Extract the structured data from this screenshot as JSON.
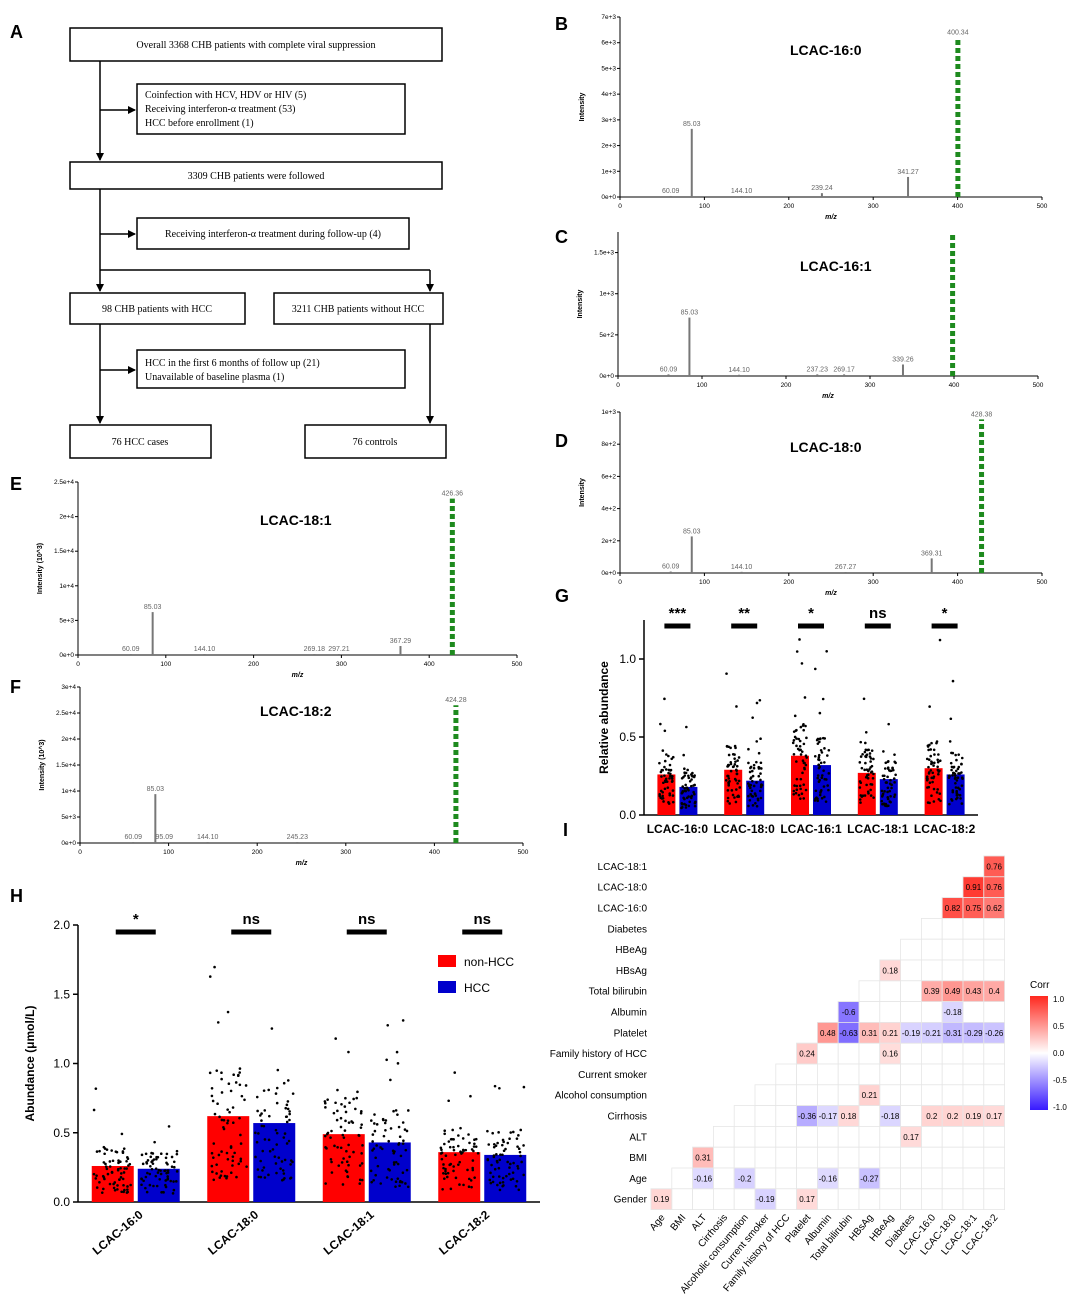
{
  "panel_letters": {
    "a": "A",
    "b": "B",
    "c": "C",
    "d": "D",
    "e": "E",
    "f": "F",
    "g": "G",
    "h": "H",
    "i": "I"
  },
  "flowchart": {
    "box1": "Overall 3368 CHB patients with complete viral suppression",
    "excl1": [
      "Coinfection with HCV, HDV or HIV (5)",
      "Receiving interferon-α treatment (53)",
      "HCC before enrollment (1)"
    ],
    "box2": "3309 CHB patients were followed",
    "excl2": "Receiving interferon-α treatment during follow-up (4)",
    "box3a": "98 CHB patients with HCC",
    "box3b": "3211 CHB patients without HCC",
    "excl3": [
      "HCC in the first 6 months of follow up (21)",
      "Unavailable of baseline plasma (1)"
    ],
    "box4a": "76 HCC cases",
    "box4b": "76 controls"
  },
  "chart_data": [
    {
      "id": "B",
      "type": "bar",
      "title": "LCAC-16:0",
      "xlabel": "m/z",
      "ylabel": "Intensity",
      "xlim": [
        0,
        500
      ],
      "xticks": [
        "0",
        "100",
        "200",
        "300",
        "400",
        "500"
      ],
      "ylim": [
        0,
        7000
      ],
      "yticks": [
        "0e+0",
        "1e+3",
        "2e+3",
        "3e+3",
        "4e+3",
        "5e+3",
        "6e+3",
        "7e+3"
      ],
      "peaks": [
        {
          "x": 60.09,
          "y": 40,
          "label": "60.09"
        },
        {
          "x": 85.03,
          "y": 2650,
          "label": "85.03"
        },
        {
          "x": 144.1,
          "y": 25,
          "label": "144.10"
        },
        {
          "x": 239.24,
          "y": 150,
          "label": "239.24"
        },
        {
          "x": 341.27,
          "y": 780,
          "label": "341.27"
        },
        {
          "x": 400.34,
          "y": 6200,
          "label": "400.34",
          "highlight": true
        }
      ]
    },
    {
      "id": "C",
      "type": "bar",
      "title": "LCAC-16:1",
      "xlabel": "m/z",
      "ylabel": "Intensity",
      "xlim": [
        0,
        500
      ],
      "xticks": [
        "0",
        "100",
        "200",
        "300",
        "400",
        "500"
      ],
      "ylim": [
        0,
        1750
      ],
      "yticks": [
        "0e+0",
        "5e+2",
        "1e+3",
        "1.5e+3"
      ],
      "peaks": [
        {
          "x": 60.09,
          "y": 20,
          "label": "60.09"
        },
        {
          "x": 85.03,
          "y": 710,
          "label": "85.03"
        },
        {
          "x": 144.1,
          "y": 15,
          "label": "144.10"
        },
        {
          "x": 237.23,
          "y": 20,
          "label": "237.23"
        },
        {
          "x": 269.17,
          "y": 20,
          "label": "269.17"
        },
        {
          "x": 339.26,
          "y": 140,
          "label": "339.26"
        },
        {
          "x": 398.33,
          "y": 1750,
          "label": "",
          "highlight": true
        }
      ]
    },
    {
      "id": "D",
      "type": "bar",
      "title": "LCAC-18:0",
      "xlabel": "m/z",
      "ylabel": "Intensity",
      "xlim": [
        0,
        500
      ],
      "xticks": [
        "0",
        "100",
        "200",
        "300",
        "400",
        "500"
      ],
      "ylim": [
        0,
        1100
      ],
      "yticks": [
        "0e+0",
        "2e+2",
        "4e+2",
        "6e+2",
        "8e+2",
        "1e+3"
      ],
      "peaks": [
        {
          "x": 60.09,
          "y": 10,
          "label": "60.09"
        },
        {
          "x": 85.03,
          "y": 250,
          "label": "85.03"
        },
        {
          "x": 144.1,
          "y": 8,
          "label": "144.10"
        },
        {
          "x": 267.27,
          "y": 5,
          "label": "267.27"
        },
        {
          "x": 369.31,
          "y": 100,
          "label": "369.31"
        },
        {
          "x": 428.38,
          "y": 1050,
          "label": "428.38",
          "highlight": true
        }
      ]
    },
    {
      "id": "E",
      "type": "bar",
      "title": "LCAC-18:1",
      "xlabel": "m/z",
      "ylabel": "Intensity (10^3)",
      "xlim": [
        0,
        500
      ],
      "xticks": [
        "0",
        "100",
        "200",
        "300",
        "400",
        "500"
      ],
      "ylim": [
        0,
        25000
      ],
      "yticks": [
        "0e+0",
        "5e+3",
        "1e+4",
        "1.5e+4",
        "2e+4",
        "2.5e+4"
      ],
      "peaks": [
        {
          "x": 60.09,
          "y": 50,
          "label": "60.09"
        },
        {
          "x": 85.03,
          "y": 6200,
          "label": "85.03"
        },
        {
          "x": 144.1,
          "y": 50,
          "label": "144.10"
        },
        {
          "x": 269.18,
          "y": 60,
          "label": "269.18"
        },
        {
          "x": 297.21,
          "y": 60,
          "label": "297.21"
        },
        {
          "x": 367.29,
          "y": 1300,
          "label": "367.29"
        },
        {
          "x": 426.36,
          "y": 22600,
          "label": "426.36",
          "highlight": true
        }
      ]
    },
    {
      "id": "F",
      "type": "bar",
      "title": "LCAC-18:2",
      "xlabel": "m/z",
      "ylabel": "Intensity (10^3)",
      "xlim": [
        0,
        500
      ],
      "xticks": [
        "0",
        "100",
        "200",
        "300",
        "400",
        "500"
      ],
      "ylim": [
        0,
        30000
      ],
      "yticks": [
        "0e+0",
        "5e+3",
        "1e+4",
        "1.5e+4",
        "2e+4",
        "2.5e+4",
        "3e+4"
      ],
      "peaks": [
        {
          "x": 60.09,
          "y": 40,
          "label": "60.09"
        },
        {
          "x": 85.03,
          "y": 9400,
          "label": "85.03"
        },
        {
          "x": 95.09,
          "y": 20,
          "label": "95.09"
        },
        {
          "x": 144.1,
          "y": 20,
          "label": "144.10"
        },
        {
          "x": 245.23,
          "y": 20,
          "label": "245.23"
        },
        {
          "x": 424.28,
          "y": 26500,
          "label": "424.28",
          "highlight": true
        }
      ]
    },
    {
      "id": "G",
      "type": "bar",
      "ylabel": "Relative abundance",
      "ylim": [
        0,
        1.25
      ],
      "yticks": [
        "0.0",
        "0.5",
        "1.0"
      ],
      "categories": [
        "LCAC-16:0",
        "LCAC-18:0",
        "LCAC-16:1",
        "LCAC-18:1",
        "LCAC-18:2"
      ],
      "series": [
        {
          "name": "non-HCC",
          "color": "#ff0000",
          "values": [
            0.26,
            0.29,
            0.38,
            0.27,
            0.3
          ]
        },
        {
          "name": "HCC",
          "color": "#0000cc",
          "values": [
            0.18,
            0.22,
            0.32,
            0.23,
            0.26
          ]
        }
      ],
      "significance": [
        "***",
        "**",
        "*",
        "ns",
        "*"
      ]
    },
    {
      "id": "H",
      "type": "bar",
      "ylabel": "Abundance (μmol/L)",
      "ylim": [
        0,
        2.0
      ],
      "yticks": [
        "0.0",
        "0.5",
        "1.0",
        "1.5",
        "2.0"
      ],
      "categories": [
        "LCAC-16:0",
        "LCAC-18:0",
        "LCAC-18:1",
        "LCAC-18:2"
      ],
      "series": [
        {
          "name": "non-HCC",
          "color": "#ff0000",
          "values": [
            0.26,
            0.62,
            0.49,
            0.36
          ]
        },
        {
          "name": "HCC",
          "color": "#0000cc",
          "values": [
            0.24,
            0.57,
            0.43,
            0.34
          ]
        }
      ],
      "significance": [
        "*",
        "ns",
        "ns",
        "ns"
      ],
      "legend": [
        "non-HCC",
        "HCC"
      ]
    },
    {
      "id": "I",
      "type": "heatmap",
      "legend_title": "Corr",
      "legend_ticks": [
        "1.0",
        "0.5",
        "0.0",
        "-0.5",
        "-1.0"
      ],
      "rows": [
        "LCAC-18:1",
        "LCAC-18:0",
        "LCAC-16:0",
        "Diabetes",
        "HBeAg",
        "HBsAg",
        "Total bilirubin",
        "Albumin",
        "Platelet",
        "Family history of HCC",
        "Current smoker",
        "Alcohol consumption",
        "Cirrhosis",
        "ALT",
        "BMI",
        "Age",
        "Gender"
      ],
      "cols": [
        "Age",
        "BMI",
        "ALT",
        "Cirrhosis",
        "Alcoholic consumption",
        "Current smoker",
        "Family history of HCC",
        "Platelet",
        "Albumin",
        "Total bilirubin",
        "HBsAg",
        "HBeAg",
        "Diabetes",
        "LCAC-16:0",
        "LCAC-18:0",
        "LCAC-18:1",
        "LCAC-18:2"
      ],
      "cells": [
        {
          "r": 0,
          "c": 16,
          "v": 0.76,
          "label": "0.76"
        },
        {
          "r": 1,
          "c": 15,
          "v": 0.91,
          "label": "0.91"
        },
        {
          "r": 1,
          "c": 16,
          "v": 0.76,
          "label": "0.76"
        },
        {
          "r": 2,
          "c": 14,
          "v": 0.82,
          "label": "0.82"
        },
        {
          "r": 2,
          "c": 15,
          "v": 0.75,
          "label": "0.75"
        },
        {
          "r": 2,
          "c": 16,
          "v": 0.62,
          "label": "0.62"
        },
        {
          "r": 5,
          "c": 11,
          "v": 0.18,
          "label": "0.18"
        },
        {
          "r": 6,
          "c": 13,
          "v": 0.39,
          "label": "0.39"
        },
        {
          "r": 6,
          "c": 14,
          "v": 0.49,
          "label": "0.49"
        },
        {
          "r": 6,
          "c": 15,
          "v": 0.43,
          "label": "0.43"
        },
        {
          "r": 6,
          "c": 16,
          "v": 0.4,
          "label": "0.4"
        },
        {
          "r": 7,
          "c": 9,
          "v": -0.6,
          "label": "-0.6"
        },
        {
          "r": 7,
          "c": 14,
          "v": -0.18,
          "label": "-0.18"
        },
        {
          "r": 8,
          "c": 8,
          "v": 0.48,
          "label": "0.48"
        },
        {
          "r": 8,
          "c": 9,
          "v": -0.63,
          "label": "-0.63"
        },
        {
          "r": 8,
          "c": 10,
          "v": 0.31,
          "label": "0.31"
        },
        {
          "r": 8,
          "c": 11,
          "v": 0.21,
          "label": "0.21"
        },
        {
          "r": 8,
          "c": 12,
          "v": -0.19,
          "label": "-0.19"
        },
        {
          "r": 8,
          "c": 13,
          "v": -0.21,
          "label": "-0.21"
        },
        {
          "r": 8,
          "c": 14,
          "v": -0.31,
          "label": "-0.31"
        },
        {
          "r": 8,
          "c": 15,
          "v": -0.29,
          "label": "-0.29"
        },
        {
          "r": 8,
          "c": 16,
          "v": -0.26,
          "label": "-0.26"
        },
        {
          "r": 9,
          "c": 7,
          "v": 0.24,
          "label": "0.24"
        },
        {
          "r": 9,
          "c": 11,
          "v": 0.16,
          "label": "0.16"
        },
        {
          "r": 11,
          "c": 10,
          "v": 0.21,
          "label": "0.21"
        },
        {
          "r": 12,
          "c": 7,
          "v": -0.36,
          "label": "-0.36"
        },
        {
          "r": 12,
          "c": 8,
          "v": -0.17,
          "label": "-0.17"
        },
        {
          "r": 12,
          "c": 9,
          "v": 0.18,
          "label": "0.18"
        },
        {
          "r": 12,
          "c": 11,
          "v": -0.18,
          "label": "-0.18"
        },
        {
          "r": 12,
          "c": 13,
          "v": 0.2,
          "label": "0.2"
        },
        {
          "r": 12,
          "c": 14,
          "v": 0.2,
          "label": "0.2"
        },
        {
          "r": 12,
          "c": 15,
          "v": 0.19,
          "label": "0.19"
        },
        {
          "r": 12,
          "c": 16,
          "v": 0.17,
          "label": "0.17"
        },
        {
          "r": 13,
          "c": 12,
          "v": 0.17,
          "label": "0.17"
        },
        {
          "r": 14,
          "c": 2,
          "v": 0.31,
          "label": "0.31"
        },
        {
          "r": 15,
          "c": 2,
          "v": -0.16,
          "label": "-0.16"
        },
        {
          "r": 15,
          "c": 4,
          "v": -0.2,
          "label": "-0.2"
        },
        {
          "r": 15,
          "c": 8,
          "v": -0.16,
          "label": "-0.16"
        },
        {
          "r": 15,
          "c": 10,
          "v": -0.27,
          "label": "-0.27"
        },
        {
          "r": 16,
          "c": 0,
          "v": 0.19,
          "label": "0.19"
        },
        {
          "r": 16,
          "c": 5,
          "v": -0.19,
          "label": "-0.19"
        },
        {
          "r": 16,
          "c": 7,
          "v": 0.17,
          "label": "0.17"
        }
      ]
    }
  ]
}
